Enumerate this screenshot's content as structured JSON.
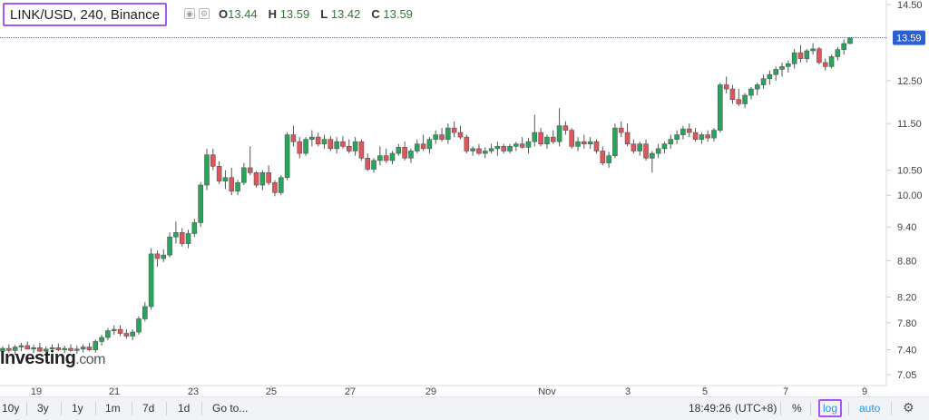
{
  "header": {
    "symbol": "LINK/USD, 240, Binance",
    "ohlc": [
      {
        "key": "O",
        "value": "13.44"
      },
      {
        "key": "H",
        "value": "13.59"
      },
      {
        "key": "L",
        "value": "13.42"
      },
      {
        "key": "C",
        "value": "13.59"
      }
    ],
    "icons": [
      "eye-icon",
      "gear-icon"
    ]
  },
  "watermark": {
    "brand": "Investing",
    "suffix": ".com"
  },
  "bottombar": {
    "ranges": [
      "10y",
      "3y",
      "1y",
      "1m",
      "7d",
      "1d"
    ],
    "goto": "Go to...",
    "time": "18:49:26",
    "timezone": "(UTC+8)",
    "percent": "%",
    "log": "log",
    "auto": "auto"
  },
  "colors": {
    "up": "#26a65b",
    "down": "#e0555a",
    "price_line": "#2a5fd6",
    "price_tag": "#2a5fd6"
  },
  "chart_data": {
    "type": "candlestick",
    "scale": "log",
    "last_price": "13.59",
    "y_ticks": [
      "14.50",
      "13.59",
      "12.50",
      "11.50",
      "10.50",
      "10.00",
      "9.40",
      "8.80",
      "8.20",
      "7.80",
      "7.40",
      "7.05"
    ],
    "y_tick_values": [
      14.5,
      12.5,
      11.5,
      10.5,
      10.0,
      9.4,
      8.8,
      8.2,
      7.8,
      7.4,
      7.05
    ],
    "x_ticks": [
      "19",
      "21",
      "23",
      "25",
      "27",
      "29",
      "Nov",
      "3",
      "5",
      "7",
      "9"
    ],
    "candles": [
      [
        7.38,
        7.45,
        7.33,
        7.42
      ],
      [
        7.42,
        7.48,
        7.36,
        7.39
      ],
      [
        7.39,
        7.47,
        7.33,
        7.44
      ],
      [
        7.44,
        7.5,
        7.38,
        7.46
      ],
      [
        7.46,
        7.52,
        7.4,
        7.41
      ],
      [
        7.41,
        7.47,
        7.35,
        7.43
      ],
      [
        7.43,
        7.5,
        7.37,
        7.38
      ],
      [
        7.38,
        7.45,
        7.32,
        7.41
      ],
      [
        7.41,
        7.48,
        7.36,
        7.43
      ],
      [
        7.43,
        7.49,
        7.38,
        7.4
      ],
      [
        7.4,
        7.46,
        7.35,
        7.42
      ],
      [
        7.42,
        7.48,
        7.37,
        7.39
      ],
      [
        7.39,
        7.46,
        7.34,
        7.41
      ],
      [
        7.41,
        7.48,
        7.36,
        7.44
      ],
      [
        7.44,
        7.5,
        7.38,
        7.4
      ],
      [
        7.4,
        7.55,
        7.36,
        7.52
      ],
      [
        7.52,
        7.62,
        7.46,
        7.58
      ],
      [
        7.58,
        7.72,
        7.54,
        7.68
      ],
      [
        7.68,
        7.76,
        7.62,
        7.7
      ],
      [
        7.7,
        7.76,
        7.6,
        7.64
      ],
      [
        7.64,
        7.7,
        7.56,
        7.6
      ],
      [
        7.6,
        7.7,
        7.54,
        7.66
      ],
      [
        7.66,
        7.9,
        7.62,
        7.86
      ],
      [
        7.86,
        8.12,
        7.82,
        8.05
      ],
      [
        8.05,
        9.02,
        8.0,
        8.92
      ],
      [
        8.92,
        8.98,
        8.7,
        8.84
      ],
      [
        8.84,
        9.0,
        8.78,
        8.9
      ],
      [
        8.9,
        9.3,
        8.86,
        9.22
      ],
      [
        9.22,
        9.5,
        9.1,
        9.3
      ],
      [
        9.3,
        9.38,
        9.05,
        9.1
      ],
      [
        9.1,
        9.35,
        9.02,
        9.28
      ],
      [
        9.28,
        9.55,
        9.22,
        9.48
      ],
      [
        9.48,
        10.25,
        9.4,
        10.2
      ],
      [
        10.2,
        10.95,
        10.1,
        10.82
      ],
      [
        10.82,
        10.95,
        10.5,
        10.58
      ],
      [
        10.58,
        10.68,
        10.22,
        10.28
      ],
      [
        10.28,
        10.5,
        10.12,
        10.35
      ],
      [
        10.35,
        10.55,
        10.0,
        10.08
      ],
      [
        10.08,
        10.3,
        10.0,
        10.25
      ],
      [
        10.25,
        10.65,
        10.2,
        10.55
      ],
      [
        10.55,
        11.0,
        10.4,
        10.45
      ],
      [
        10.45,
        10.48,
        10.15,
        10.2
      ],
      [
        10.2,
        10.5,
        10.1,
        10.45
      ],
      [
        10.45,
        10.6,
        10.2,
        10.25
      ],
      [
        10.25,
        10.3,
        9.98,
        10.05
      ],
      [
        10.05,
        10.4,
        10.0,
        10.35
      ],
      [
        10.35,
        11.3,
        10.3,
        11.25
      ],
      [
        11.25,
        11.45,
        11.0,
        11.1
      ],
      [
        11.1,
        11.2,
        10.75,
        10.85
      ],
      [
        10.85,
        11.2,
        10.8,
        11.15
      ],
      [
        11.15,
        11.35,
        11.0,
        11.2
      ],
      [
        11.2,
        11.3,
        11.0,
        11.05
      ],
      [
        11.05,
        11.25,
        10.95,
        11.15
      ],
      [
        11.15,
        11.22,
        10.9,
        10.95
      ],
      [
        10.95,
        11.2,
        10.85,
        11.1
      ],
      [
        11.1,
        11.22,
        10.95,
        11.0
      ],
      [
        11.0,
        11.15,
        10.85,
        10.9
      ],
      [
        10.9,
        11.2,
        10.8,
        11.1
      ],
      [
        11.1,
        11.15,
        10.7,
        10.75
      ],
      [
        10.75,
        10.85,
        10.48,
        10.52
      ],
      [
        10.52,
        10.75,
        10.45,
        10.7
      ],
      [
        10.7,
        11.0,
        10.6,
        10.8
      ],
      [
        10.8,
        10.95,
        10.65,
        10.7
      ],
      [
        10.7,
        10.9,
        10.62,
        10.85
      ],
      [
        10.85,
        11.05,
        10.8,
        10.98
      ],
      [
        10.98,
        11.1,
        10.7,
        10.75
      ],
      [
        10.75,
        10.95,
        10.65,
        10.9
      ],
      [
        10.9,
        11.15,
        10.85,
        11.05
      ],
      [
        11.05,
        11.25,
        10.9,
        10.95
      ],
      [
        10.95,
        11.2,
        10.85,
        11.15
      ],
      [
        11.15,
        11.35,
        11.05,
        11.25
      ],
      [
        11.25,
        11.4,
        11.1,
        11.15
      ],
      [
        11.15,
        11.5,
        11.05,
        11.4
      ],
      [
        11.4,
        11.55,
        11.2,
        11.3
      ],
      [
        11.3,
        11.45,
        11.15,
        11.2
      ],
      [
        11.2,
        11.25,
        10.85,
        10.9
      ],
      [
        10.9,
        11.0,
        10.8,
        10.95
      ],
      [
        10.95,
        11.05,
        10.82,
        10.85
      ],
      [
        10.85,
        10.98,
        10.75,
        10.9
      ],
      [
        10.9,
        11.05,
        10.85,
        10.95
      ],
      [
        10.95,
        11.1,
        10.8,
        11.0
      ],
      [
        11.0,
        11.05,
        10.85,
        10.9
      ],
      [
        10.9,
        11.05,
        10.85,
        11.0
      ],
      [
        11.0,
        11.1,
        10.9,
        11.05
      ],
      [
        11.05,
        11.2,
        10.95,
        10.98
      ],
      [
        10.98,
        11.18,
        10.85,
        11.1
      ],
      [
        11.1,
        11.7,
        11.0,
        11.3
      ],
      [
        11.3,
        11.4,
        11.0,
        11.05
      ],
      [
        11.05,
        11.25,
        10.95,
        11.2
      ],
      [
        11.2,
        11.35,
        11.05,
        11.1
      ],
      [
        11.1,
        11.85,
        11.0,
        11.45
      ],
      [
        11.45,
        11.55,
        11.25,
        11.35
      ],
      [
        11.35,
        11.4,
        10.95,
        11.0
      ],
      [
        11.0,
        11.2,
        10.9,
        11.1
      ],
      [
        11.1,
        11.25,
        10.95,
        11.05
      ],
      [
        11.05,
        11.2,
        10.95,
        11.1
      ],
      [
        11.1,
        11.15,
        10.85,
        10.9
      ],
      [
        10.9,
        11.0,
        10.6,
        10.65
      ],
      [
        10.65,
        10.88,
        10.55,
        10.8
      ],
      [
        10.8,
        11.5,
        10.75,
        11.4
      ],
      [
        11.4,
        11.55,
        11.2,
        11.3
      ],
      [
        11.3,
        11.5,
        11.0,
        11.05
      ],
      [
        11.05,
        11.15,
        10.85,
        10.9
      ],
      [
        10.9,
        11.1,
        10.8,
        11.05
      ],
      [
        11.05,
        11.15,
        10.7,
        10.75
      ],
      [
        10.75,
        10.9,
        10.45,
        10.85
      ],
      [
        10.85,
        11.05,
        10.75,
        10.95
      ],
      [
        10.95,
        11.1,
        10.85,
        11.05
      ],
      [
        11.05,
        11.25,
        10.95,
        11.15
      ],
      [
        11.15,
        11.35,
        11.05,
        11.25
      ],
      [
        11.25,
        11.45,
        11.15,
        11.38
      ],
      [
        11.38,
        11.5,
        11.2,
        11.3
      ],
      [
        11.3,
        11.4,
        11.1,
        11.15
      ],
      [
        11.15,
        11.3,
        11.05,
        11.25
      ],
      [
        11.25,
        11.35,
        11.1,
        11.18
      ],
      [
        11.18,
        11.4,
        11.1,
        11.35
      ],
      [
        11.35,
        12.45,
        11.3,
        12.4
      ],
      [
        12.4,
        12.6,
        12.2,
        12.3
      ],
      [
        12.3,
        12.4,
        11.95,
        12.05
      ],
      [
        12.05,
        12.3,
        11.9,
        11.95
      ],
      [
        11.95,
        12.2,
        11.85,
        12.15
      ],
      [
        12.15,
        12.35,
        12.05,
        12.3
      ],
      [
        12.3,
        12.45,
        12.15,
        12.4
      ],
      [
        12.4,
        12.65,
        12.3,
        12.55
      ],
      [
        12.55,
        12.75,
        12.4,
        12.65
      ],
      [
        12.65,
        12.85,
        12.5,
        12.78
      ],
      [
        12.78,
        12.95,
        12.6,
        12.85
      ],
      [
        12.85,
        13.0,
        12.7,
        12.92
      ],
      [
        12.92,
        13.3,
        12.8,
        13.2
      ],
      [
        13.2,
        13.4,
        12.95,
        13.05
      ],
      [
        13.05,
        13.3,
        12.95,
        13.25
      ],
      [
        13.25,
        13.45,
        13.15,
        13.3
      ],
      [
        13.3,
        13.35,
        12.9,
        12.95
      ],
      [
        12.95,
        13.05,
        12.75,
        12.85
      ],
      [
        12.85,
        13.15,
        12.8,
        13.1
      ],
      [
        13.1,
        13.35,
        13.0,
        13.28
      ],
      [
        13.28,
        13.55,
        13.15,
        13.44
      ],
      [
        13.44,
        13.59,
        13.42,
        13.59
      ]
    ]
  }
}
